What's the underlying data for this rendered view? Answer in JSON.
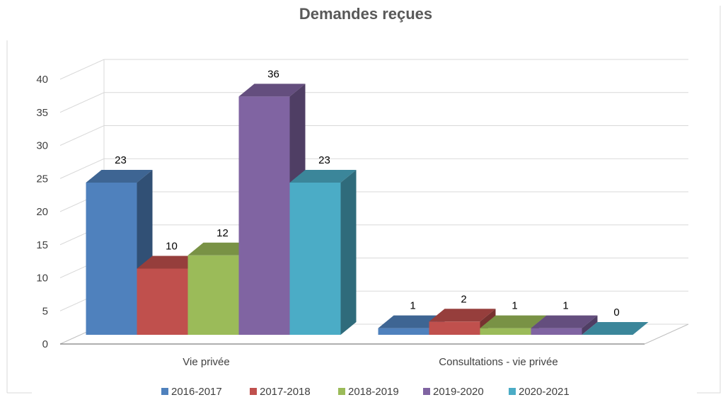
{
  "chart_data": {
    "type": "bar",
    "title": "Demandes reçues",
    "xlabel": "",
    "ylabel": "",
    "categories": [
      "Vie privée",
      "Consultations - vie privée"
    ],
    "series": [
      {
        "name": "2016-2017",
        "values": [
          23,
          1
        ],
        "color": "#4F81BD"
      },
      {
        "name": "2017-2018",
        "values": [
          10,
          2
        ],
        "color": "#C0504D"
      },
      {
        "name": "2018-2019",
        "values": [
          12,
          1
        ],
        "color": "#9BBB59"
      },
      {
        "name": "2019-2020",
        "values": [
          36,
          1
        ],
        "color": "#8064A2"
      },
      {
        "name": "2020-2021",
        "values": [
          23,
          0
        ],
        "color": "#4BACC6"
      }
    ],
    "ylim": [
      0,
      40
    ],
    "yticks": [
      0,
      5,
      10,
      15,
      20,
      25,
      30,
      35,
      40
    ],
    "grid": true,
    "legend_position": "bottom",
    "style": "3d-column",
    "data_labels": true
  }
}
